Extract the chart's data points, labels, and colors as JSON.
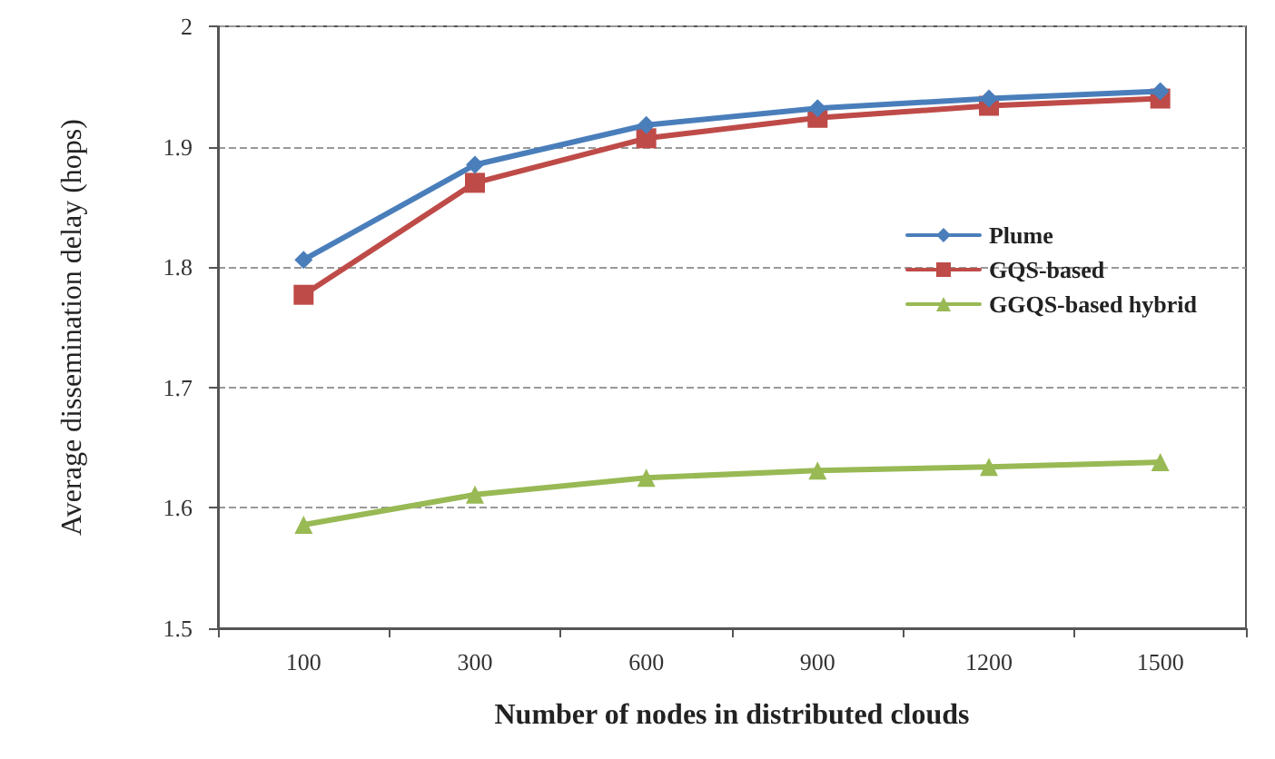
{
  "chart_data": {
    "type": "line",
    "xlabel": "Number of nodes in distributed clouds",
    "ylabel": "Average dissemination delay (hops)",
    "categories": [
      "100",
      "300",
      "600",
      "900",
      "1200",
      "1500"
    ],
    "series": [
      {
        "name": "Plume",
        "color": "#4a7ebb",
        "marker": "diamond",
        "values": [
          1.806,
          1.885,
          1.918,
          1.932,
          1.94,
          1.946
        ]
      },
      {
        "name": "GQS-based",
        "color": "#be4b48",
        "marker": "square",
        "values": [
          1.777,
          1.87,
          1.907,
          1.924,
          1.934,
          1.94
        ]
      },
      {
        "name": "GGQS-based hybrid",
        "color": "#98b954",
        "marker": "triangle",
        "values": [
          1.586,
          1.611,
          1.625,
          1.631,
          1.634,
          1.638
        ]
      }
    ],
    "ylim": [
      1.5,
      2
    ],
    "yticks": [
      1.5,
      1.6,
      1.7,
      1.8,
      1.9,
      2
    ],
    "grid": "y",
    "legend": "right",
    "line_style": "solid"
  }
}
